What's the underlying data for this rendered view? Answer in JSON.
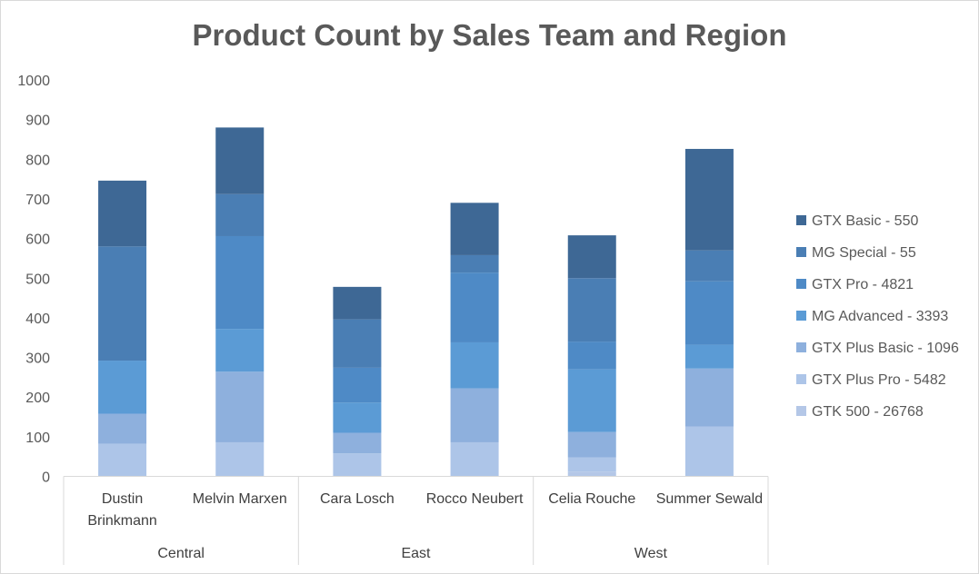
{
  "chart_data": {
    "type": "bar",
    "stacked": true,
    "title": "Product Count by Sales Team and Region",
    "xlabel": "",
    "ylabel": "",
    "ylim": [
      0,
      1000
    ],
    "yticks": [
      "0",
      "100",
      "200",
      "300",
      "400",
      "500",
      "600",
      "700",
      "800",
      "900",
      "1000"
    ],
    "grid": false,
    "legend_position": "right",
    "categories": [
      [
        "Dustin",
        "Brinkmann"
      ],
      [
        "Melvin Marxen"
      ],
      [
        "Cara Losch"
      ],
      [
        "Rocco Neubert"
      ],
      [
        "Celia Rouche"
      ],
      [
        "Summer Sewald"
      ]
    ],
    "groups": [
      {
        "name": "Central",
        "span": 2
      },
      {
        "name": "East",
        "span": 2
      },
      {
        "name": "West",
        "span": 2
      }
    ],
    "series": [
      {
        "name": "GTK 500 - 26768",
        "color": "#b4c7e7",
        "values": [
          0,
          0,
          0,
          0,
          12,
          0
        ]
      },
      {
        "name": "GTX Plus Pro - 5482",
        "color": "#adc5e8",
        "values": [
          82,
          86,
          58,
          86,
          36,
          126
        ]
      },
      {
        "name": "GTX Plus Basic - 1096",
        "color": "#8eb0dd",
        "values": [
          76,
          178,
          52,
          136,
          64,
          146
        ]
      },
      {
        "name": "MG Advanced - 3393",
        "color": "#5b9bd5",
        "values": [
          134,
          108,
          76,
          116,
          158,
          60
        ]
      },
      {
        "name": "GTX Pro - 4821",
        "color": "#4e8ac6",
        "values": [
          0,
          234,
          88,
          176,
          70,
          160
        ]
      },
      {
        "name": "MG Special - 55",
        "color": "#4a7eb4",
        "values": [
          288,
          106,
          122,
          44,
          160,
          78
        ]
      },
      {
        "name": "GTX Basic - 550",
        "color": "#3e6895",
        "values": [
          166,
          168,
          82,
          132,
          108,
          256
        ]
      }
    ]
  }
}
